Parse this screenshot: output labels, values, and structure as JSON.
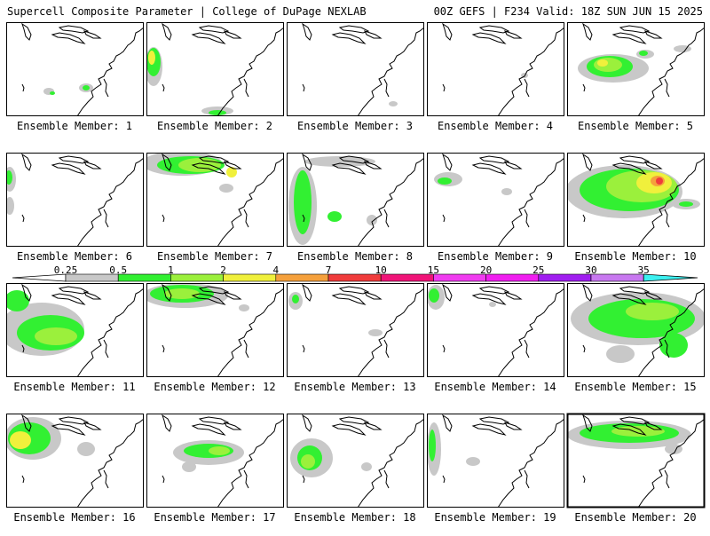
{
  "header": {
    "title": "Supercell Composite Parameter | College of DuPage NEXLAB",
    "valid": "00Z GEFS | F234 Valid: 18Z SUN JUN 15 2025"
  },
  "map": {
    "region": "Great Lakes / Northeast US",
    "label_prefix": "Ensemble Member:",
    "members": [
      {
        "label": "Ensemble Member: 1",
        "member": 1,
        "coverage": "sparse",
        "max_level": "1"
      },
      {
        "label": "Ensemble Member: 2",
        "member": 2,
        "coverage": "scattered",
        "max_level": "4"
      },
      {
        "label": "Ensemble Member: 3",
        "member": 3,
        "coverage": "none",
        "max_level": "0.25"
      },
      {
        "label": "Ensemble Member: 4",
        "member": 4,
        "coverage": "none",
        "max_level": "0.25"
      },
      {
        "label": "Ensemble Member: 5",
        "member": 5,
        "coverage": "moderate",
        "max_level": "4"
      },
      {
        "label": "Ensemble Member: 6",
        "member": 6,
        "coverage": "sparse",
        "max_level": "1"
      },
      {
        "label": "Ensemble Member: 7",
        "member": 7,
        "coverage": "moderate",
        "max_level": "4"
      },
      {
        "label": "Ensemble Member: 8",
        "member": 8,
        "coverage": "moderate",
        "max_level": "2"
      },
      {
        "label": "Ensemble Member: 9",
        "member": 9,
        "coverage": "sparse",
        "max_level": "1"
      },
      {
        "label": "Ensemble Member: 10",
        "member": 10,
        "coverage": "widespread",
        "max_level": "10"
      },
      {
        "label": "Ensemble Member: 11",
        "member": 11,
        "coverage": "widespread",
        "max_level": "2"
      },
      {
        "label": "Ensemble Member: 12",
        "member": 12,
        "coverage": "moderate",
        "max_level": "2"
      },
      {
        "label": "Ensemble Member: 13",
        "member": 13,
        "coverage": "sparse",
        "max_level": "1"
      },
      {
        "label": "Ensemble Member: 14",
        "member": 14,
        "coverage": "sparse",
        "max_level": "2"
      },
      {
        "label": "Ensemble Member: 15",
        "member": 15,
        "coverage": "widespread",
        "max_level": "2"
      },
      {
        "label": "Ensemble Member: 16",
        "member": 16,
        "coverage": "moderate",
        "max_level": "4"
      },
      {
        "label": "Ensemble Member: 17",
        "member": 17,
        "coverage": "moderate",
        "max_level": "2"
      },
      {
        "label": "Ensemble Member: 18",
        "member": 18,
        "coverage": "moderate",
        "max_level": "2"
      },
      {
        "label": "Ensemble Member: 19",
        "member": 19,
        "coverage": "sparse",
        "max_level": "1"
      },
      {
        "label": "Ensemble Member: 20",
        "member": 20,
        "coverage": "moderate",
        "max_level": "2"
      }
    ]
  },
  "colorbar": {
    "levels": [
      "0.25",
      "0.5",
      "1",
      "2",
      "4",
      "7",
      "10",
      "15",
      "20",
      "25",
      "30",
      "35"
    ],
    "colors": [
      "#c8c8c8",
      "#32f032",
      "#9bf03c",
      "#f0f03c",
      "#f5a03c",
      "#f03c3c",
      "#f01478",
      "#f03cf0",
      "#f01ef0",
      "#a01ef0",
      "#c878f0",
      "#3cf0f0"
    ]
  }
}
